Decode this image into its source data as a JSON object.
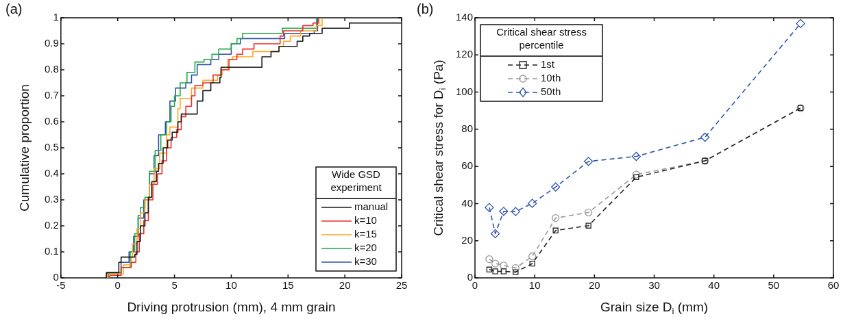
{
  "chart_data": [
    {
      "type": "step",
      "title": "(a)",
      "xlabel": "Driving protrusion (mm), 4 mm grain",
      "ylabel": "Cumulative proportion",
      "legend_title": "Wide GSD experiment",
      "legend": "bottom right",
      "grid": false,
      "xlim": [
        -5,
        25
      ],
      "xticks": [
        -5,
        0,
        5,
        10,
        15,
        20,
        25
      ],
      "ylim": [
        0,
        1
      ],
      "yticks": [
        0,
        0.1,
        0.2,
        0.3,
        0.4,
        0.5,
        0.6,
        0.7,
        0.8,
        0.9,
        1
      ],
      "series": [
        {
          "name": "manual",
          "color": "#1a1a1a",
          "x": [
            -1,
            -1,
            0.1,
            0.3,
            1.5,
            1.7,
            2.0,
            2.4,
            2.7,
            3.0,
            3.4,
            3.6,
            4.0,
            4.4,
            4.8,
            5.3,
            5.6,
            7.0,
            7.5,
            8.2,
            9.0,
            9.1,
            12.7,
            13.5,
            14.2,
            15.8,
            16.3,
            16.9,
            18.0,
            20.4,
            25
          ],
          "values": [
            0,
            0.02,
            0.06,
            0.08,
            0.09,
            0.14,
            0.2,
            0.25,
            0.31,
            0.37,
            0.41,
            0.44,
            0.5,
            0.53,
            0.56,
            0.6,
            0.63,
            0.68,
            0.72,
            0.75,
            0.77,
            0.81,
            0.85,
            0.87,
            0.89,
            0.91,
            0.93,
            0.94,
            0.96,
            0.98,
            0.98
          ]
        },
        {
          "name": "k=10",
          "color": "#ee2a2a",
          "x": [
            -0.7,
            -0.7,
            0.3,
            1.2,
            1.6,
            1.9,
            2.3,
            2.7,
            3.1,
            3.5,
            3.9,
            4.3,
            4.7,
            5.2,
            5.6,
            6.0,
            6.5,
            6.8,
            7.5,
            8.4,
            9.1,
            9.8,
            10.5,
            11.0,
            12.0,
            14.3,
            14.6,
            16.3,
            17.2,
            17.7
          ],
          "values": [
            0,
            0.01,
            0.04,
            0.06,
            0.1,
            0.17,
            0.22,
            0.3,
            0.36,
            0.4,
            0.45,
            0.5,
            0.54,
            0.57,
            0.62,
            0.66,
            0.7,
            0.74,
            0.75,
            0.78,
            0.8,
            0.84,
            0.86,
            0.88,
            0.9,
            0.93,
            0.95,
            0.97,
            0.98,
            1
          ]
        },
        {
          "name": "k=15",
          "color": "#ffa51f",
          "x": [
            -0.9,
            -0.9,
            0.5,
            1.2,
            1.3,
            1.7,
            2.0,
            2.4,
            2.8,
            3.2,
            3.7,
            4.3,
            4.6,
            5.3,
            5.5,
            6.5,
            7.5,
            8.8,
            9.2,
            9.7,
            10.1,
            11.9,
            14.2,
            14.6,
            15.2,
            16.1,
            17.5,
            18.0
          ],
          "values": [
            0,
            0.015,
            0.05,
            0.08,
            0.13,
            0.19,
            0.25,
            0.3,
            0.36,
            0.42,
            0.48,
            0.55,
            0.58,
            0.65,
            0.69,
            0.73,
            0.76,
            0.78,
            0.8,
            0.84,
            0.85,
            0.87,
            0.89,
            0.91,
            0.93,
            0.95,
            0.97,
            1.0
          ]
        },
        {
          "name": "k=20",
          "color": "#22aa44",
          "x": [
            -0.8,
            -0.8,
            0.3,
            1.1,
            1.5,
            1.8,
            2.0,
            2.4,
            2.8,
            3.3,
            3.8,
            4.3,
            4.7,
            5.0,
            5.5,
            6.1,
            6.8,
            7.6,
            8.3,
            8.9,
            10.0,
            10.5,
            11.0,
            14.5,
            17.5
          ],
          "values": [
            0,
            0.02,
            0.04,
            0.1,
            0.17,
            0.24,
            0.27,
            0.31,
            0.41,
            0.49,
            0.55,
            0.6,
            0.66,
            0.7,
            0.75,
            0.79,
            0.83,
            0.84,
            0.86,
            0.88,
            0.9,
            0.92,
            0.94,
            0.96,
            1.0
          ]
        },
        {
          "name": "k=30",
          "color": "#3050a8",
          "x": [
            -0.9,
            -0.9,
            0.3,
            1.0,
            1.4,
            1.8,
            2.3,
            2.8,
            3.2,
            3.6,
            4.2,
            4.6,
            5.1,
            6.0,
            6.5,
            7.0,
            8.2,
            8.9,
            10.0,
            10.8,
            14.7,
            17.3,
            17.6
          ],
          "values": [
            0,
            0.02,
            0.06,
            0.1,
            0.16,
            0.23,
            0.3,
            0.4,
            0.47,
            0.55,
            0.6,
            0.68,
            0.73,
            0.75,
            0.78,
            0.82,
            0.84,
            0.86,
            0.9,
            0.92,
            0.94,
            0.95,
            1.0
          ]
        }
      ]
    },
    {
      "type": "line",
      "title": "(b)",
      "xlabel": "Grain size D$_{i}$ (mm)",
      "ylabel": "Critical shear stress for D$_{i}$ (Pa)",
      "legend_title": "Critical shear stress percentile",
      "legend": "top left",
      "grid": false,
      "line_style": "dashed",
      "xlim": [
        0,
        60
      ],
      "xticks": [
        0,
        10,
        20,
        30,
        40,
        50,
        60
      ],
      "ylim": [
        0,
        140
      ],
      "yticks": [
        0,
        20,
        40,
        60,
        80,
        100,
        120,
        140
      ],
      "x": [
        2.4,
        3.4,
        4.8,
        6.8,
        9.6,
        13.5,
        19.0,
        27.0,
        38.5,
        54.5
      ],
      "series": [
        {
          "name": "1st",
          "color": "#222222",
          "marker": "square",
          "values": [
            4.5,
            3.5,
            3.5,
            3.1,
            7.7,
            25.5,
            28.1,
            54.2,
            63.0,
            91.4
          ]
        },
        {
          "name": "10th",
          "color": "#999999",
          "marker": "circle",
          "values": [
            10.1,
            7.7,
            6.7,
            5.3,
            11.6,
            32.2,
            35.2,
            55.6,
            63.0,
            91.4
          ]
        },
        {
          "name": "50th",
          "color": "#3355aa",
          "marker": "diamond",
          "values": [
            37.9,
            23.8,
            35.8,
            35.7,
            40.1,
            48.9,
            62.7,
            65.4,
            75.7,
            136.9
          ]
        }
      ]
    }
  ]
}
